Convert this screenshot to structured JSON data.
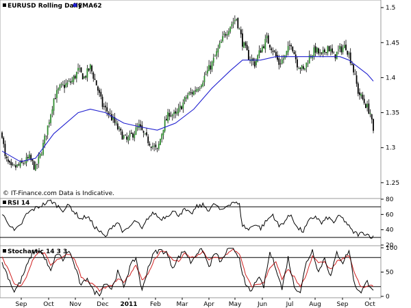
{
  "colors": {
    "candle_up": "#2e8b2e",
    "candle_down": "#000000",
    "ema": "#1f1fd0",
    "rsi": "#000000",
    "stoch_k": "#000000",
    "stoch_d": "#d02020"
  },
  "note": "© IT-Finance.com Data is Indicative.",
  "chart_data": [
    {
      "type": "candlestick",
      "title": "EURUSD Rolling Daily",
      "legend": [
        {
          "name": "EMA62",
          "color": "#1f1fd0"
        }
      ],
      "y_ticks": [
        "1.5",
        "1.45",
        "1.4",
        "1.35",
        "1.3",
        "1.25"
      ],
      "y_tick_values": [
        1.5,
        1.45,
        1.4,
        1.35,
        1.3,
        1.25
      ],
      "ylim": [
        1.245,
        1.505
      ],
      "x_month_labels": [
        "Sep",
        "Oct",
        "Nov",
        "Dec",
        "2011",
        "Feb",
        "Mar",
        "Apr",
        "May",
        "Jun",
        "Jul",
        "Aug",
        "Sep",
        "Oct"
      ],
      "close_path": [
        [
          0,
          1.32
        ],
        [
          2,
          1.285
        ],
        [
          6,
          1.27
        ],
        [
          12,
          1.275
        ],
        [
          18,
          1.285
        ],
        [
          22,
          1.27
        ],
        [
          26,
          1.295
        ],
        [
          30,
          1.33
        ],
        [
          34,
          1.37
        ],
        [
          38,
          1.385
        ],
        [
          42,
          1.39
        ],
        [
          46,
          1.395
        ],
        [
          50,
          1.41
        ],
        [
          54,
          1.4
        ],
        [
          58,
          1.415
        ],
        [
          62,
          1.39
        ],
        [
          66,
          1.36
        ],
        [
          70,
          1.35
        ],
        [
          74,
          1.335
        ],
        [
          78,
          1.32
        ],
        [
          82,
          1.31
        ],
        [
          86,
          1.32
        ],
        [
          90,
          1.33
        ],
        [
          94,
          1.315
        ],
        [
          98,
          1.305
        ],
        [
          102,
          1.295
        ],
        [
          106,
          1.33
        ],
        [
          110,
          1.35
        ],
        [
          114,
          1.345
        ],
        [
          118,
          1.36
        ],
        [
          122,
          1.375
        ],
        [
          126,
          1.38
        ],
        [
          130,
          1.39
        ],
        [
          134,
          1.405
        ],
        [
          138,
          1.42
        ],
        [
          142,
          1.44
        ],
        [
          146,
          1.46
        ],
        [
          150,
          1.475
        ],
        [
          154,
          1.485
        ],
        [
          158,
          1.45
        ],
        [
          162,
          1.43
        ],
        [
          166,
          1.42
        ],
        [
          170,
          1.44
        ],
        [
          174,
          1.455
        ],
        [
          178,
          1.44
        ],
        [
          182,
          1.42
        ],
        [
          186,
          1.43
        ],
        [
          190,
          1.45
        ],
        [
          194,
          1.42
        ],
        [
          198,
          1.41
        ],
        [
          202,
          1.43
        ],
        [
          206,
          1.44
        ],
        [
          210,
          1.43
        ],
        [
          214,
          1.445
        ],
        [
          218,
          1.43
        ],
        [
          222,
          1.44
        ],
        [
          226,
          1.445
        ],
        [
          230,
          1.42
        ],
        [
          234,
          1.38
        ],
        [
          238,
          1.365
        ],
        [
          242,
          1.35
        ],
        [
          244,
          1.32
        ]
      ],
      "ema_path": [
        [
          0,
          1.295
        ],
        [
          12,
          1.28
        ],
        [
          22,
          1.285
        ],
        [
          34,
          1.32
        ],
        [
          50,
          1.35
        ],
        [
          58,
          1.355
        ],
        [
          68,
          1.35
        ],
        [
          80,
          1.335
        ],
        [
          90,
          1.33
        ],
        [
          102,
          1.325
        ],
        [
          114,
          1.335
        ],
        [
          126,
          1.355
        ],
        [
          138,
          1.385
        ],
        [
          150,
          1.41
        ],
        [
          158,
          1.425
        ],
        [
          170,
          1.425
        ],
        [
          180,
          1.43
        ],
        [
          196,
          1.43
        ],
        [
          210,
          1.43
        ],
        [
          222,
          1.43
        ],
        [
          228,
          1.425
        ],
        [
          234,
          1.415
        ],
        [
          240,
          1.405
        ],
        [
          244,
          1.395
        ]
      ]
    },
    {
      "type": "line",
      "title": "RSI 14",
      "y_ticks": [
        "80",
        "60",
        "40",
        "20"
      ],
      "y_tick_values": [
        80,
        60,
        40,
        20
      ],
      "ylim": [
        20,
        80
      ],
      "reference_lines": [
        70,
        30
      ],
      "path": [
        [
          0,
          60
        ],
        [
          4,
          50
        ],
        [
          8,
          38
        ],
        [
          12,
          45
        ],
        [
          16,
          60
        ],
        [
          20,
          66
        ],
        [
          24,
          70
        ],
        [
          28,
          74
        ],
        [
          32,
          78
        ],
        [
          36,
          72
        ],
        [
          40,
          66
        ],
        [
          44,
          72
        ],
        [
          48,
          62
        ],
        [
          52,
          54
        ],
        [
          56,
          58
        ],
        [
          60,
          46
        ],
        [
          64,
          38
        ],
        [
          68,
          30
        ],
        [
          72,
          44
        ],
        [
          76,
          50
        ],
        [
          80,
          36
        ],
        [
          84,
          44
        ],
        [
          88,
          52
        ],
        [
          92,
          40
        ],
        [
          96,
          56
        ],
        [
          100,
          62
        ],
        [
          104,
          54
        ],
        [
          108,
          58
        ],
        [
          112,
          64
        ],
        [
          116,
          60
        ],
        [
          120,
          66
        ],
        [
          124,
          60
        ],
        [
          128,
          70
        ],
        [
          132,
          72
        ],
        [
          136,
          66
        ],
        [
          140,
          74
        ],
        [
          144,
          64
        ],
        [
          148,
          72
        ],
        [
          152,
          77
        ],
        [
          156,
          72
        ],
        [
          158,
          46
        ],
        [
          162,
          40
        ],
        [
          166,
          48
        ],
        [
          170,
          42
        ],
        [
          174,
          52
        ],
        [
          178,
          60
        ],
        [
          182,
          44
        ],
        [
          186,
          52
        ],
        [
          190,
          60
        ],
        [
          194,
          42
        ],
        [
          198,
          38
        ],
        [
          202,
          52
        ],
        [
          206,
          58
        ],
        [
          210,
          48
        ],
        [
          214,
          56
        ],
        [
          218,
          50
        ],
        [
          222,
          58
        ],
        [
          226,
          50
        ],
        [
          230,
          38
        ],
        [
          234,
          34
        ],
        [
          238,
          36
        ],
        [
          242,
          32
        ],
        [
          244,
          30
        ]
      ]
    },
    {
      "type": "line",
      "title": "Stochastic 14 3 3",
      "y_ticks": [
        "100",
        "50",
        "0"
      ],
      "y_tick_values": [
        100,
        50,
        0
      ],
      "ylim": [
        0,
        100
      ],
      "reference_lines": [
        80,
        20
      ],
      "series": [
        {
          "color": "#000000",
          "path": [
            [
              0,
              70
            ],
            [
              4,
              40
            ],
            [
              8,
              10
            ],
            [
              12,
              30
            ],
            [
              16,
              60
            ],
            [
              20,
              90
            ],
            [
              24,
              95
            ],
            [
              28,
              80
            ],
            [
              32,
              50
            ],
            [
              36,
              90
            ],
            [
              40,
              75
            ],
            [
              44,
              95
            ],
            [
              48,
              60
            ],
            [
              52,
              20
            ],
            [
              56,
              40
            ],
            [
              60,
              10
            ],
            [
              64,
              5
            ],
            [
              68,
              30
            ],
            [
              72,
              15
            ],
            [
              76,
              50
            ],
            [
              80,
              20
            ],
            [
              84,
              60
            ],
            [
              88,
              80
            ],
            [
              92,
              10
            ],
            [
              96,
              60
            ],
            [
              100,
              90
            ],
            [
              104,
              95
            ],
            [
              108,
              90
            ],
            [
              112,
              60
            ],
            [
              116,
              80
            ],
            [
              120,
              95
            ],
            [
              124,
              70
            ],
            [
              128,
              90
            ],
            [
              132,
              95
            ],
            [
              136,
              60
            ],
            [
              140,
              90
            ],
            [
              144,
              70
            ],
            [
              148,
              95
            ],
            [
              152,
              98
            ],
            [
              156,
              80
            ],
            [
              160,
              20
            ],
            [
              164,
              10
            ],
            [
              168,
              40
            ],
            [
              172,
              20
            ],
            [
              176,
              90
            ],
            [
              180,
              60
            ],
            [
              184,
              15
            ],
            [
              188,
              80
            ],
            [
              192,
              20
            ],
            [
              196,
              10
            ],
            [
              200,
              70
            ],
            [
              204,
              95
            ],
            [
              208,
              50
            ],
            [
              212,
              80
            ],
            [
              216,
              40
            ],
            [
              220,
              90
            ],
            [
              224,
              70
            ],
            [
              228,
              95
            ],
            [
              232,
              20
            ],
            [
              236,
              10
            ],
            [
              240,
              30
            ],
            [
              244,
              15
            ]
          ]
        },
        {
          "color": "#d02020",
          "path": [
            [
              0,
              80
            ],
            [
              4,
              55
            ],
            [
              8,
              25
            ],
            [
              12,
              20
            ],
            [
              16,
              40
            ],
            [
              20,
              75
            ],
            [
              24,
              92
            ],
            [
              28,
              88
            ],
            [
              32,
              65
            ],
            [
              36,
              75
            ],
            [
              40,
              82
            ],
            [
              44,
              88
            ],
            [
              48,
              75
            ],
            [
              52,
              40
            ],
            [
              56,
              30
            ],
            [
              60,
              25
            ],
            [
              64,
              12
            ],
            [
              68,
              18
            ],
            [
              72,
              22
            ],
            [
              76,
              35
            ],
            [
              80,
              30
            ],
            [
              84,
              45
            ],
            [
              88,
              65
            ],
            [
              92,
              35
            ],
            [
              96,
              45
            ],
            [
              100,
              75
            ],
            [
              104,
              92
            ],
            [
              108,
              92
            ],
            [
              112,
              75
            ],
            [
              116,
              72
            ],
            [
              120,
              88
            ],
            [
              124,
              80
            ],
            [
              128,
              82
            ],
            [
              132,
              92
            ],
            [
              136,
              75
            ],
            [
              140,
              80
            ],
            [
              144,
              78
            ],
            [
              148,
              88
            ],
            [
              152,
              96
            ],
            [
              156,
              88
            ],
            [
              160,
              45
            ],
            [
              164,
              20
            ],
            [
              168,
              25
            ],
            [
              172,
              28
            ],
            [
              176,
              60
            ],
            [
              180,
              70
            ],
            [
              184,
              35
            ],
            [
              188,
              55
            ],
            [
              192,
              40
            ],
            [
              196,
              18
            ],
            [
              200,
              45
            ],
            [
              204,
              82
            ],
            [
              208,
              70
            ],
            [
              212,
              70
            ],
            [
              216,
              55
            ],
            [
              220,
              72
            ],
            [
              224,
              78
            ],
            [
              228,
              85
            ],
            [
              232,
              45
            ],
            [
              236,
              18
            ],
            [
              240,
              20
            ],
            [
              244,
              22
            ]
          ]
        }
      ]
    }
  ]
}
